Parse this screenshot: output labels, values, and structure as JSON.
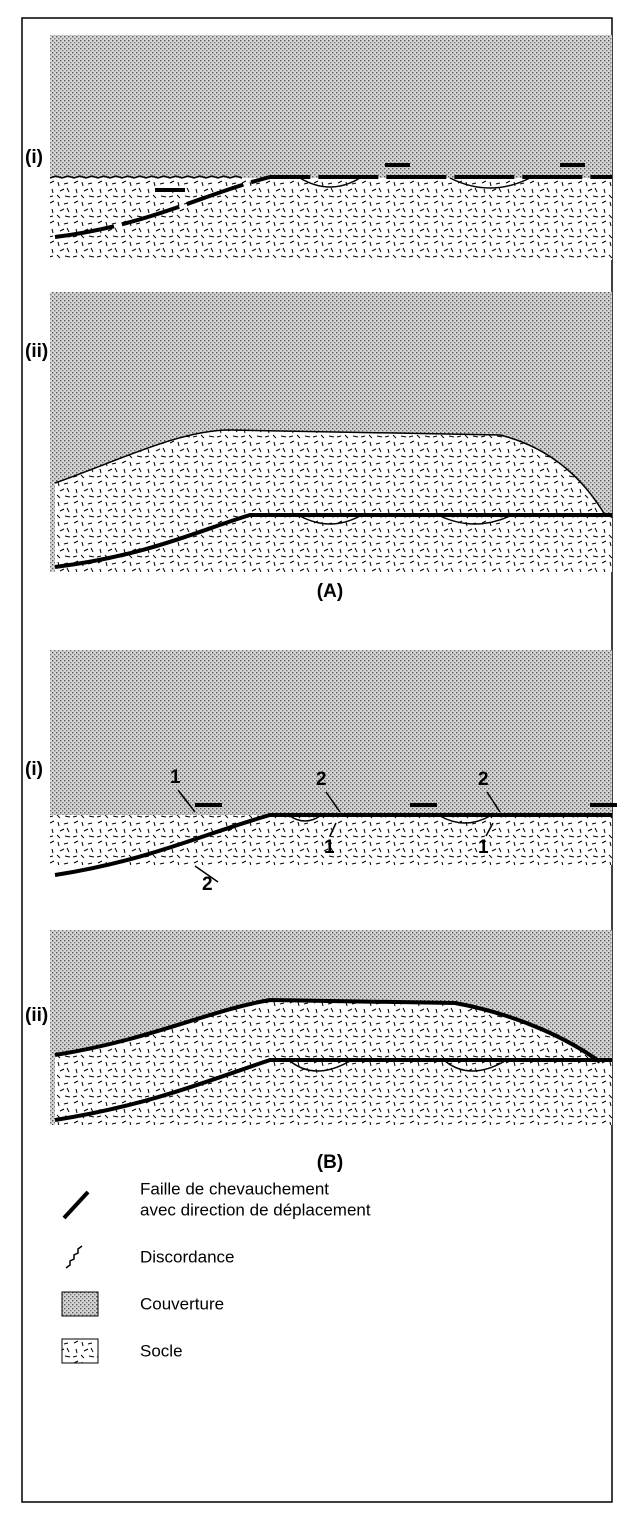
{
  "panels": [
    {
      "label": "(A)",
      "sections": [
        {
          "label": "(i)"
        },
        {
          "label": "(ii)"
        }
      ]
    },
    {
      "label": "(B)",
      "sections": [
        {
          "label": "(i)",
          "callouts": [
            "1",
            "2",
            "1",
            "2",
            "1",
            "2"
          ]
        },
        {
          "label": "(ii)"
        }
      ]
    }
  ],
  "legend": [
    {
      "lines": [
        "Faille de chevauchement",
        "avec direction de déplacement"
      ]
    },
    {
      "lines": [
        "Discordance"
      ]
    },
    {
      "lines": [
        "Couverture"
      ]
    },
    {
      "lines": [
        "Socle"
      ]
    }
  ]
}
